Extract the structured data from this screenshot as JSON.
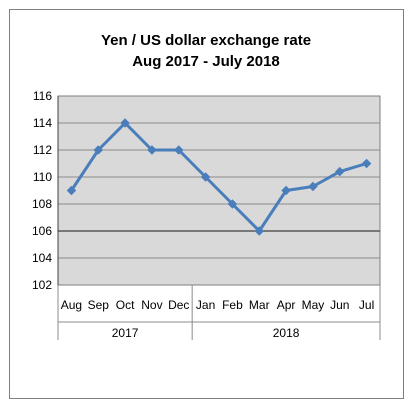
{
  "chart_data": {
    "type": "line",
    "title_line1": "Yen / US dollar exchange rate",
    "title_line2": "Aug 2017 - July 2018",
    "categories": [
      "Aug",
      "Sep",
      "Oct",
      "Nov",
      "Dec",
      "Jan",
      "Feb",
      "Mar",
      "Apr",
      "May",
      "Jun",
      "Jul"
    ],
    "year_groups": [
      {
        "label": "2017",
        "count": 5
      },
      {
        "label": "2018",
        "count": 7
      }
    ],
    "values": [
      109.0,
      112.0,
      114.0,
      112.0,
      112.0,
      110.0,
      108.0,
      106.0,
      109.0,
      109.3,
      110.4,
      111.0
    ],
    "ylim": [
      102,
      116
    ],
    "yticks": [
      102,
      104,
      106,
      108,
      110,
      112,
      114,
      116
    ],
    "grid": true,
    "legend": "none",
    "colors": {
      "series": "#4a7ebb",
      "plot_area": "#d9d9d9",
      "gridline": "#8c8c8c",
      "zero_band_line": "#595959",
      "frame": "#7f7f7f"
    }
  }
}
